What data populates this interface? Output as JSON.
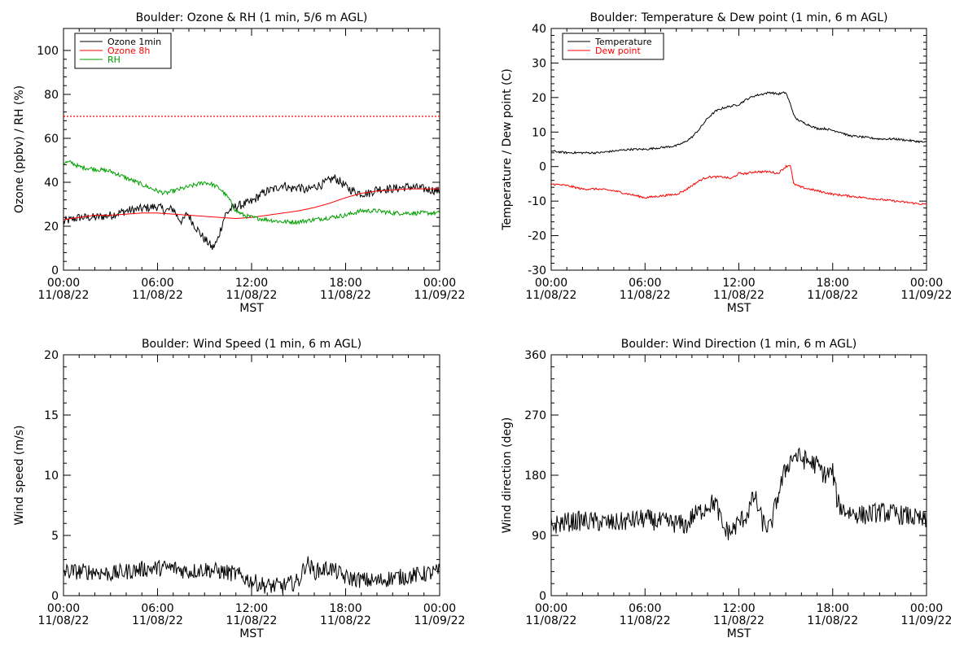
{
  "chart_data": [
    {
      "type": "line",
      "title": "Boulder: Ozone & RH (1 min, 5/6 m AGL)",
      "xlabel": "MST",
      "ylabel": "Ozone (ppbv) / RH (%)",
      "x_ticks": [
        [
          "00:00",
          "11/08/22"
        ],
        [
          "06:00",
          "11/08/22"
        ],
        [
          "12:00",
          "11/08/22"
        ],
        [
          "18:00",
          "11/08/22"
        ],
        [
          "00:00",
          "11/09/22"
        ]
      ],
      "xlim_hours": [
        0,
        24
      ],
      "ylim": [
        0,
        110
      ],
      "y_ticks": [
        0,
        20,
        40,
        60,
        80,
        100
      ],
      "legend": {
        "placement": "top-left",
        "entries": [
          {
            "name": "Ozone 1min",
            "color": "#000000"
          },
          {
            "name": "Ozone 8h",
            "color": "#ff0000"
          },
          {
            "name": "RH",
            "color": "#00a000"
          }
        ]
      },
      "reference_line": {
        "y": 70,
        "color": "#ff0000",
        "style": "dotted"
      },
      "series": [
        {
          "name": "Ozone 1min",
          "color": "#000000",
          "noise": 2.0,
          "x": [
            0,
            1,
            2,
            3,
            4,
            5,
            6,
            6.5,
            7,
            7.3,
            7.6,
            7.9,
            8.3,
            8.6,
            9,
            9.3,
            9.5,
            9.8,
            10,
            10.3,
            10.7,
            11,
            11.5,
            12,
            12.5,
            13,
            13.5,
            14,
            14.5,
            15,
            15.5,
            16,
            16.5,
            17,
            17.3,
            17.7,
            18,
            18.5,
            19,
            19.5,
            20,
            21,
            22,
            23,
            24
          ],
          "y": [
            22,
            24,
            24,
            25,
            27,
            28,
            29,
            27,
            28,
            24,
            22,
            26,
            21,
            18,
            14,
            12,
            10,
            13,
            18,
            25,
            28,
            29,
            30,
            31,
            34,
            36,
            37,
            39,
            37,
            38,
            36,
            38,
            39,
            41,
            42,
            40,
            38,
            36,
            35,
            35,
            37,
            37,
            38,
            37,
            36
          ]
        },
        {
          "name": "Ozone 8h",
          "color": "#ff0000",
          "noise": 0,
          "x": [
            0,
            1,
            2,
            3,
            4,
            5,
            6,
            7,
            8,
            9,
            10,
            11,
            12,
            13,
            14,
            15,
            16,
            17,
            18,
            19,
            20,
            21,
            22,
            23,
            24
          ],
          "y": [
            23,
            24,
            25,
            25,
            25.5,
            26,
            26,
            25.5,
            25,
            24.5,
            24,
            23.5,
            24,
            25,
            26,
            27,
            28.5,
            30.5,
            33,
            35,
            36,
            36.5,
            37,
            37,
            37
          ]
        },
        {
          "name": "RH",
          "color": "#00a000",
          "noise": 1.0,
          "x": [
            0,
            0.5,
            1,
            2,
            3,
            4,
            5,
            6,
            6.5,
            7,
            7.5,
            8,
            8.5,
            9,
            9.5,
            10,
            10.5,
            11,
            11.5,
            12,
            13,
            14,
            15,
            16,
            17,
            18,
            19,
            20,
            21,
            22,
            23,
            24
          ],
          "y": [
            49,
            49,
            47,
            46,
            45,
            42,
            39,
            36,
            35,
            36,
            37,
            38,
            39,
            40,
            39,
            37,
            33,
            27,
            25,
            24,
            23,
            22,
            22,
            23,
            24,
            25,
            27,
            27,
            26,
            26,
            26,
            26
          ]
        }
      ]
    },
    {
      "type": "line",
      "title": "Boulder: Temperature & Dew point (1 min, 6 m AGL)",
      "xlabel": "MST",
      "ylabel": "Temperature / Dew point (C)",
      "x_ticks": [
        [
          "00:00",
          "11/08/22"
        ],
        [
          "06:00",
          "11/08/22"
        ],
        [
          "12:00",
          "11/08/22"
        ],
        [
          "18:00",
          "11/08/22"
        ],
        [
          "00:00",
          "11/09/22"
        ]
      ],
      "xlim_hours": [
        0,
        24
      ],
      "ylim": [
        -30,
        40
      ],
      "y_ticks": [
        -30,
        -20,
        -10,
        0,
        10,
        20,
        30,
        40
      ],
      "legend": {
        "placement": "top-left",
        "entries": [
          {
            "name": "Temperature",
            "color": "#000000"
          },
          {
            "name": "Dew point",
            "color": "#ff0000"
          }
        ]
      },
      "series": [
        {
          "name": "Temperature",
          "color": "#000000",
          "noise": 0.3,
          "x": [
            0,
            1,
            2,
            3,
            4,
            5,
            6,
            7,
            8,
            8.5,
            9,
            9.5,
            10,
            10.5,
            11,
            11.5,
            12,
            12.5,
            13,
            13.5,
            14,
            14.5,
            15,
            15.3,
            15.6,
            16,
            16.5,
            17,
            17.5,
            18,
            18.5,
            19,
            20,
            21,
            22,
            23,
            24
          ],
          "y": [
            4.5,
            4,
            4,
            4,
            4.5,
            5,
            5,
            5.5,
            6,
            7,
            8.5,
            11,
            14,
            16,
            17,
            17.5,
            18,
            19.5,
            20.5,
            21,
            21.5,
            21,
            21.5,
            18,
            14,
            13,
            12,
            11,
            11,
            10.5,
            10,
            9,
            8.5,
            8,
            8,
            7.5,
            7
          ]
        },
        {
          "name": "Dew point",
          "color": "#ff0000",
          "noise": 0.3,
          "x": [
            0,
            1,
            2,
            3,
            4,
            5,
            6,
            7,
            8,
            8.5,
            9,
            9.5,
            10,
            10.5,
            11,
            11.5,
            12,
            12.5,
            13,
            13.5,
            14,
            14.5,
            15,
            15.3,
            15.5,
            16,
            17,
            18,
            19,
            20,
            21,
            22,
            23,
            24
          ],
          "y": [
            -5,
            -5.5,
            -6.5,
            -6.5,
            -7,
            -8,
            -9,
            -8.5,
            -8,
            -7,
            -5.5,
            -4,
            -3,
            -3,
            -3,
            -3.5,
            -2,
            -2,
            -1.5,
            -1.5,
            -1.5,
            -2,
            0,
            0.5,
            -5,
            -6,
            -7,
            -8,
            -8.5,
            -9,
            -9.5,
            -10,
            -10.5,
            -11
          ]
        }
      ]
    },
    {
      "type": "line",
      "title": "Boulder: Wind Speed (1 min, 6 m AGL)",
      "xlabel": "MST",
      "ylabel": "Wind speed (m/s)",
      "x_ticks": [
        [
          "00:00",
          "11/08/22"
        ],
        [
          "06:00",
          "11/08/22"
        ],
        [
          "12:00",
          "11/08/22"
        ],
        [
          "18:00",
          "11/08/22"
        ],
        [
          "00:00",
          "11/09/22"
        ]
      ],
      "xlim_hours": [
        0,
        24
      ],
      "ylim": [
        0,
        20
      ],
      "y_ticks": [
        0,
        5,
        10,
        15,
        20
      ],
      "series": [
        {
          "name": "",
          "color": "#000000",
          "noise": 0.7,
          "x": [
            0,
            1,
            2,
            3,
            4,
            5,
            6,
            7,
            8,
            9,
            10,
            11,
            12,
            13,
            14,
            15,
            15.5,
            16,
            17,
            18,
            19,
            20,
            21,
            22,
            23,
            24
          ],
          "y": [
            2,
            2,
            2,
            1.8,
            2,
            2.2,
            2.3,
            2.3,
            2,
            2.2,
            2,
            1.8,
            1.2,
            0.8,
            0.8,
            1.2,
            2.8,
            2,
            2.3,
            1.5,
            1.3,
            1.2,
            1.5,
            1.6,
            1.8,
            2
          ]
        }
      ]
    },
    {
      "type": "line",
      "title": "Boulder: Wind Direction (1 min, 6 m AGL)",
      "xlabel": "MST",
      "ylabel": "Wind direction (deg)",
      "x_ticks": [
        [
          "00:00",
          "11/08/22"
        ],
        [
          "06:00",
          "11/08/22"
        ],
        [
          "12:00",
          "11/08/22"
        ],
        [
          "18:00",
          "11/08/22"
        ],
        [
          "00:00",
          "11/09/22"
        ]
      ],
      "xlim_hours": [
        0,
        24
      ],
      "ylim": [
        0,
        360
      ],
      "y_ticks": [
        0,
        90,
        180,
        270,
        360
      ],
      "series": [
        {
          "name": "",
          "color": "#000000",
          "noise": 15,
          "x": [
            0,
            1,
            2,
            3,
            4,
            5,
            6,
            7,
            8,
            8.7,
            9,
            9.5,
            10,
            10.5,
            11,
            11.5,
            12,
            12.5,
            13,
            13.5,
            14,
            14.5,
            15,
            15.5,
            16,
            16.5,
            17,
            17.5,
            18,
            18.3,
            18.6,
            19,
            20,
            21,
            22,
            23,
            24
          ],
          "y": [
            105,
            110,
            112,
            110,
            108,
            112,
            115,
            110,
            108,
            105,
            118,
            125,
            135,
            140,
            100,
            95,
            110,
            120,
            150,
            110,
            100,
            150,
            190,
            210,
            205,
            200,
            195,
            180,
            185,
            140,
            130,
            125,
            120,
            125,
            122,
            118,
            110
          ]
        }
      ]
    }
  ]
}
